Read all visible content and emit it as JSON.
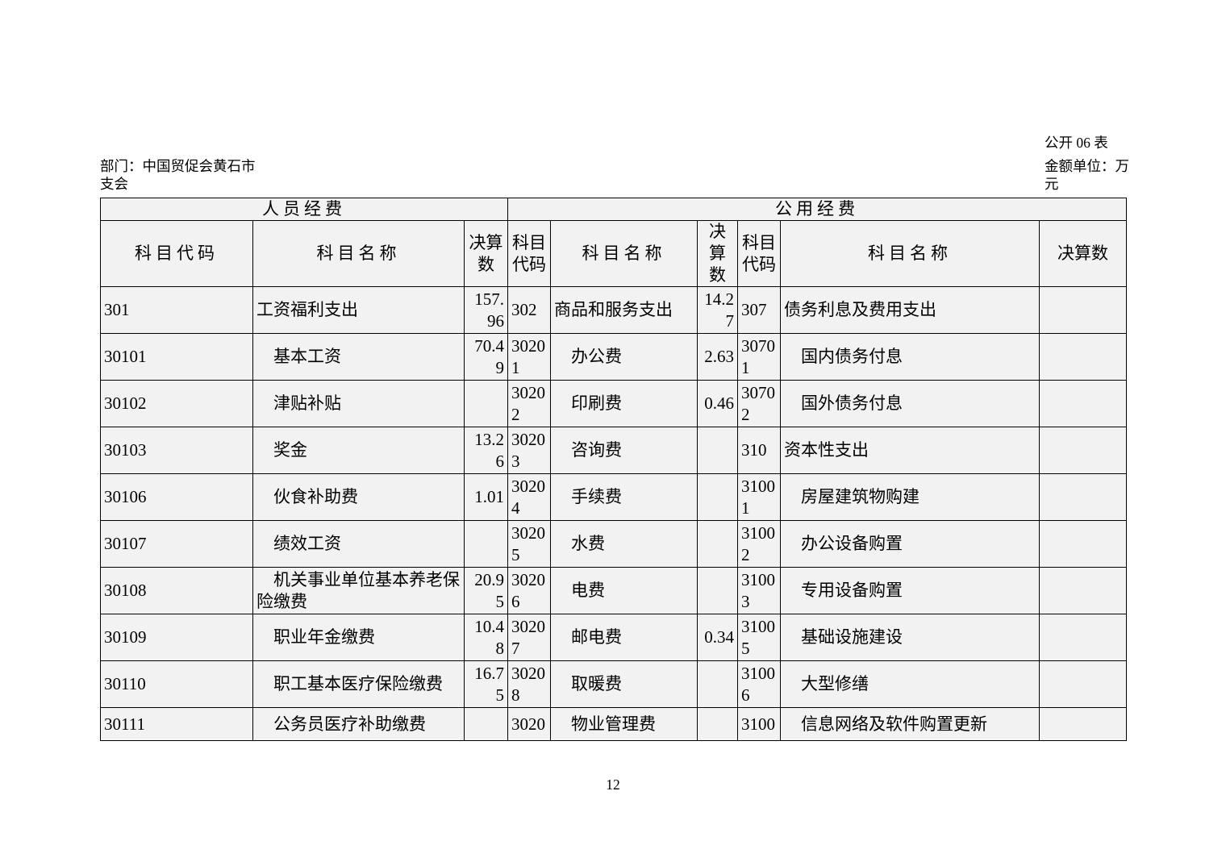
{
  "meta": {
    "form_label": "公开 06 表",
    "department": "部门：中国贸促会黄石市\n支会",
    "amount_unit": "金额单位：万\n元",
    "page_number": "12"
  },
  "table": {
    "group_headers": [
      "人员经费",
      "公用经费"
    ],
    "column_headers": [
      "科目代码",
      "科目名称",
      "决算\n数",
      "科目\n代码",
      "科目名称",
      "决算\n数",
      "科目\n代码",
      "科目名称",
      "决算数"
    ],
    "rows": [
      [
        "301",
        "工资福利支出",
        "157.96",
        "302",
        "商品和服务支出",
        "14.27",
        "307",
        "债务利息及费用支出",
        ""
      ],
      [
        "30101",
        "　基本工资",
        "70.49",
        "30201",
        "　办公费",
        "2.63",
        "30701",
        "　国内债务付息",
        ""
      ],
      [
        "30102",
        "　津贴补贴",
        "",
        "30202",
        "　印刷费",
        "0.46",
        "30702",
        "　国外债务付息",
        ""
      ],
      [
        "30103",
        "　奖金",
        "13.26",
        "30203",
        "　咨询费",
        "",
        "310",
        "资本性支出",
        ""
      ],
      [
        "30106",
        "　伙食补助费",
        "1.01",
        "30204",
        "　手续费",
        "",
        "31001",
        "　房屋建筑物购建",
        ""
      ],
      [
        "30107",
        "　绩效工资",
        "",
        "30205",
        "　水费",
        "",
        "31002",
        "　办公设备购置",
        ""
      ],
      [
        "30108",
        "　机关事业单位基本养老保险缴费",
        "20.95",
        "30206",
        "　电费",
        "",
        "31003",
        "　专用设备购置",
        ""
      ],
      [
        "30109",
        "　职业年金缴费",
        "10.48",
        "30207",
        "　邮电费",
        "0.34",
        "31005",
        "　基础设施建设",
        ""
      ],
      [
        "30110",
        "　职工基本医疗保险缴费",
        "16.75",
        "30208",
        "　取暖费",
        "",
        "31006",
        "　大型修缮",
        ""
      ],
      [
        "30111",
        "　公务员医疗补助缴费",
        "",
        "3020",
        "　物业管理费",
        "",
        "3100",
        "　信息网络及软件购置更新",
        ""
      ]
    ]
  }
}
